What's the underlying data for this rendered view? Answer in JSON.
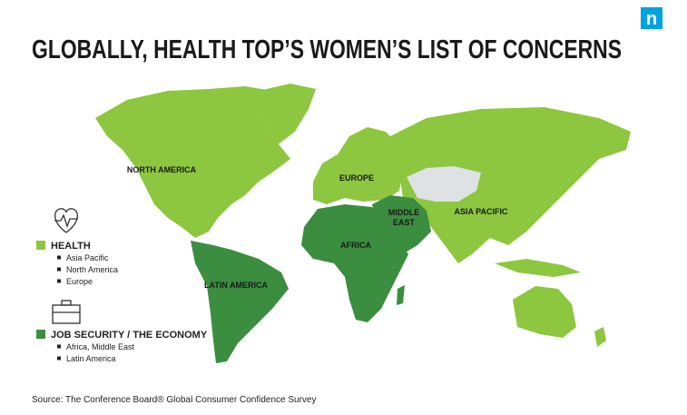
{
  "header": {
    "title": "GLOBALLY, HEALTH TOP’S WOMEN’S LIST OF CONCERNS",
    "logo": "n"
  },
  "regions": [
    {
      "label": [
        "NORTH AMERICA"
      ]
    },
    {
      "label": [
        "EUROPE"
      ]
    },
    {
      "label": [
        "MIDDLE",
        "EAST"
      ]
    },
    {
      "label": [
        "ASIA PACIFIC"
      ]
    },
    {
      "label": [
        "AFRICA"
      ]
    },
    {
      "label": [
        "LATIN AMERICA"
      ]
    }
  ],
  "legend": [
    {
      "label": "HEALTH",
      "color": "#8dc63f",
      "items": [
        "Asia Pacific",
        "North America",
        "Europe"
      ]
    },
    {
      "label": "JOB SECURITY / THE ECONOMY",
      "color": "#3b8d3f",
      "items": [
        "Africa, Middle East",
        "Latin America"
      ]
    }
  ],
  "source": "Source: The Conference Board® Global Consumer Confidence Survey"
}
